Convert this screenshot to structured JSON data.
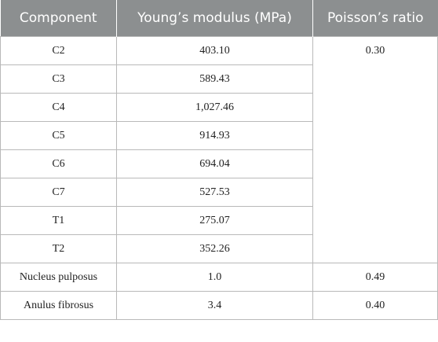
{
  "table": {
    "headers": [
      "Component",
      "Young’s modulus (MPa)",
      "Poisson’s ratio"
    ],
    "rows": [
      {
        "component": "C2",
        "youngs_modulus": "403.10",
        "poissons_ratio": "0.30"
      },
      {
        "component": "C3",
        "youngs_modulus": "589.43"
      },
      {
        "component": "C4",
        "youngs_modulus": "1,027.46"
      },
      {
        "component": "C5",
        "youngs_modulus": "914.93"
      },
      {
        "component": "C6",
        "youngs_modulus": "694.04"
      },
      {
        "component": "C7",
        "youngs_modulus": "527.53"
      },
      {
        "component": "T1",
        "youngs_modulus": "275.07"
      },
      {
        "component": "T2",
        "youngs_modulus": "352.26"
      },
      {
        "component": "Nucleus pulposus",
        "youngs_modulus": "1.0",
        "poissons_ratio": "0.49"
      },
      {
        "component": "Anulus fibrosus",
        "youngs_modulus": "3.4",
        "poissons_ratio": "0.40"
      }
    ]
  },
  "colors": {
    "header_background": "#8c8f90",
    "header_text": "#ffffff",
    "border": "#b9b9b9"
  }
}
